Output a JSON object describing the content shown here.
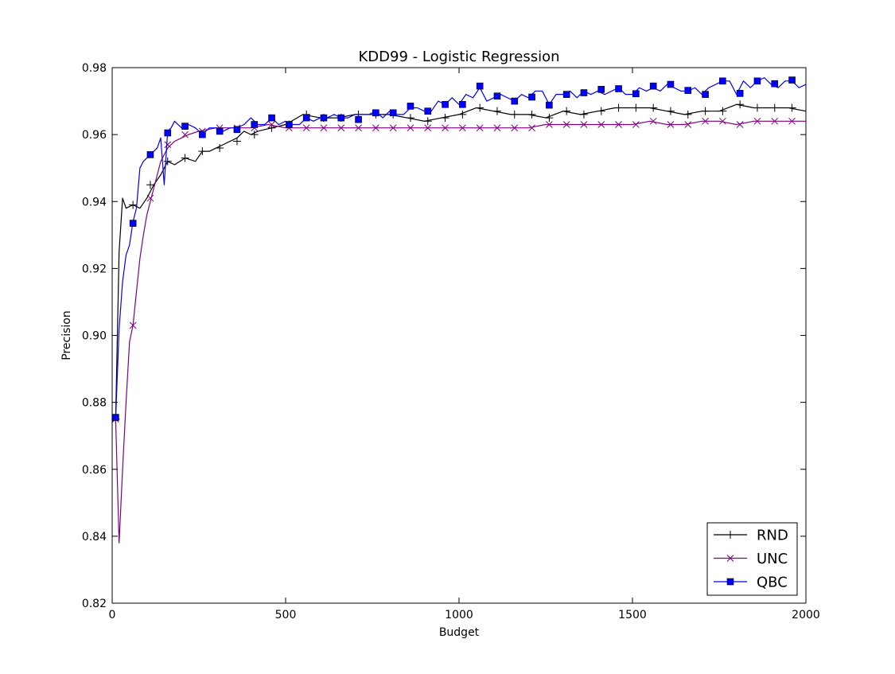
{
  "chart_data": {
    "type": "line",
    "title": "KDD99 - Logistic Regression",
    "xlabel": "Budget",
    "ylabel": "Precision",
    "xlim": [
      0,
      2000
    ],
    "ylim": [
      0.82,
      0.98
    ],
    "xticks": [
      0,
      500,
      1000,
      1500,
      2000
    ],
    "yticks": [
      0.82,
      0.84,
      0.86,
      0.88,
      0.9,
      0.92,
      0.94,
      0.96,
      0.98
    ],
    "xtick_labels": [
      "0",
      "500",
      "1000",
      "1500",
      "2000"
    ],
    "ytick_labels": [
      "0.82",
      "0.84",
      "0.86",
      "0.88",
      "0.90",
      "0.92",
      "0.94",
      "0.96",
      "0.98"
    ],
    "grid": false,
    "legend_position": "lower-right",
    "series": [
      {
        "name": "RND",
        "color": "#000000",
        "marker": "plus",
        "x": [
          10,
          20,
          30,
          40,
          60,
          80,
          100,
          120,
          140,
          160,
          180,
          210,
          240,
          260,
          280,
          300,
          320,
          360,
          380,
          400,
          420,
          460,
          500,
          550,
          600,
          650,
          700,
          750,
          800,
          850,
          900,
          950,
          1000,
          1050,
          1100,
          1150,
          1200,
          1250,
          1300,
          1350,
          1400,
          1450,
          1500,
          1550,
          1600,
          1650,
          1700,
          1750,
          1800,
          1850,
          1900,
          1950,
          2000
        ],
        "y": [
          0.875,
          0.925,
          0.941,
          0.938,
          0.939,
          0.938,
          0.941,
          0.945,
          0.948,
          0.952,
          0.951,
          0.953,
          0.952,
          0.955,
          0.955,
          0.956,
          0.957,
          0.959,
          0.961,
          0.96,
          0.961,
          0.962,
          0.963,
          0.966,
          0.965,
          0.965,
          0.966,
          0.966,
          0.966,
          0.965,
          0.964,
          0.965,
          0.966,
          0.968,
          0.967,
          0.966,
          0.966,
          0.965,
          0.967,
          0.966,
          0.967,
          0.968,
          0.968,
          0.968,
          0.967,
          0.966,
          0.967,
          0.967,
          0.969,
          0.968,
          0.968,
          0.968,
          0.967
        ],
        "marker_x": [
          10,
          60,
          110,
          160,
          210,
          260,
          310,
          360,
          410,
          460,
          510,
          560,
          610,
          660,
          710,
          760,
          810,
          860,
          910,
          960,
          1010,
          1060,
          1110,
          1160,
          1210,
          1260,
          1310,
          1360,
          1410,
          1460,
          1510,
          1560,
          1610,
          1660,
          1710,
          1760,
          1810,
          1860,
          1910,
          1960
        ],
        "marker_y": [
          0.875,
          0.939,
          0.945,
          0.952,
          0.953,
          0.955,
          0.956,
          0.958,
          0.96,
          0.962,
          0.963,
          0.966,
          0.965,
          0.965,
          0.966,
          0.966,
          0.966,
          0.965,
          0.964,
          0.965,
          0.966,
          0.968,
          0.967,
          0.966,
          0.966,
          0.965,
          0.967,
          0.966,
          0.967,
          0.968,
          0.968,
          0.968,
          0.967,
          0.966,
          0.967,
          0.967,
          0.969,
          0.968,
          0.968,
          0.968
        ]
      },
      {
        "name": "UNC",
        "color": "#800080",
        "marker": "x",
        "x": [
          10,
          20,
          30,
          40,
          50,
          60,
          70,
          80,
          90,
          100,
          110,
          120,
          130,
          140,
          160,
          180,
          200,
          220,
          250,
          300,
          350,
          400,
          450,
          500,
          550,
          600,
          650,
          700,
          750,
          800,
          850,
          900,
          950,
          1000,
          1050,
          1100,
          1150,
          1200,
          1250,
          1300,
          1350,
          1400,
          1450,
          1500,
          1550,
          1600,
          1650,
          1700,
          1750,
          1800,
          1850,
          1900,
          1950,
          2000
        ],
        "y": [
          0.875,
          0.838,
          0.86,
          0.88,
          0.898,
          0.903,
          0.913,
          0.923,
          0.93,
          0.936,
          0.94,
          0.944,
          0.948,
          0.952,
          0.956,
          0.958,
          0.959,
          0.96,
          0.961,
          0.962,
          0.962,
          0.962,
          0.963,
          0.962,
          0.962,
          0.962,
          0.962,
          0.962,
          0.962,
          0.962,
          0.962,
          0.962,
          0.962,
          0.962,
          0.962,
          0.962,
          0.962,
          0.962,
          0.963,
          0.963,
          0.963,
          0.963,
          0.963,
          0.963,
          0.964,
          0.963,
          0.963,
          0.964,
          0.964,
          0.963,
          0.964,
          0.964,
          0.964,
          0.964
        ],
        "marker_x": [
          10,
          60,
          110,
          160,
          210,
          260,
          310,
          360,
          410,
          460,
          510,
          560,
          610,
          660,
          710,
          760,
          810,
          860,
          910,
          960,
          1010,
          1060,
          1110,
          1160,
          1210,
          1260,
          1310,
          1360,
          1410,
          1460,
          1510,
          1560,
          1610,
          1660,
          1710,
          1760,
          1810,
          1860,
          1910,
          1960
        ],
        "marker_y": [
          0.875,
          0.903,
          0.941,
          0.957,
          0.96,
          0.961,
          0.962,
          0.962,
          0.962,
          0.963,
          0.962,
          0.962,
          0.962,
          0.962,
          0.962,
          0.962,
          0.962,
          0.962,
          0.962,
          0.962,
          0.962,
          0.962,
          0.962,
          0.962,
          0.962,
          0.963,
          0.963,
          0.963,
          0.963,
          0.963,
          0.963,
          0.964,
          0.963,
          0.963,
          0.964,
          0.964,
          0.963,
          0.964,
          0.964,
          0.964
        ]
      },
      {
        "name": "QBC",
        "color": "#0000ff",
        "marker": "square",
        "x": [
          10,
          20,
          30,
          40,
          50,
          60,
          70,
          80,
          90,
          100,
          110,
          120,
          130,
          140,
          150,
          160,
          170,
          180,
          190,
          200,
          210,
          220,
          240,
          260,
          280,
          300,
          320,
          340,
          360,
          380,
          400,
          420,
          440,
          460,
          480,
          500,
          520,
          540,
          560,
          580,
          600,
          620,
          640,
          660,
          680,
          700,
          720,
          740,
          760,
          780,
          800,
          820,
          840,
          860,
          880,
          900,
          920,
          940,
          960,
          980,
          1000,
          1020,
          1040,
          1060,
          1080,
          1100,
          1120,
          1140,
          1160,
          1180,
          1200,
          1220,
          1240,
          1260,
          1280,
          1300,
          1320,
          1340,
          1360,
          1380,
          1400,
          1420,
          1440,
          1460,
          1480,
          1500,
          1520,
          1540,
          1560,
          1580,
          1600,
          1620,
          1640,
          1660,
          1680,
          1700,
          1720,
          1740,
          1760,
          1780,
          1800,
          1820,
          1840,
          1860,
          1880,
          1900,
          1920,
          1940,
          1960,
          1980,
          2000
        ],
        "y": [
          0.875,
          0.902,
          0.916,
          0.924,
          0.927,
          0.934,
          0.938,
          0.95,
          0.952,
          0.953,
          0.954,
          0.955,
          0.956,
          0.959,
          0.945,
          0.961,
          0.962,
          0.964,
          0.963,
          0.962,
          0.962,
          0.963,
          0.962,
          0.96,
          0.962,
          0.962,
          0.961,
          0.962,
          0.962,
          0.963,
          0.965,
          0.963,
          0.963,
          0.965,
          0.963,
          0.964,
          0.963,
          0.963,
          0.965,
          0.964,
          0.965,
          0.965,
          0.966,
          0.965,
          0.965,
          0.966,
          0.966,
          0.966,
          0.967,
          0.965,
          0.967,
          0.966,
          0.966,
          0.968,
          0.968,
          0.967,
          0.967,
          0.97,
          0.969,
          0.971,
          0.969,
          0.972,
          0.971,
          0.974,
          0.97,
          0.971,
          0.972,
          0.971,
          0.97,
          0.972,
          0.971,
          0.973,
          0.973,
          0.969,
          0.972,
          0.972,
          0.973,
          0.971,
          0.973,
          0.972,
          0.973,
          0.972,
          0.973,
          0.974,
          0.972,
          0.972,
          0.974,
          0.973,
          0.974,
          0.973,
          0.975,
          0.974,
          0.973,
          0.973,
          0.974,
          0.972,
          0.974,
          0.975,
          0.976,
          0.976,
          0.972,
          0.976,
          0.974,
          0.976,
          0.977,
          0.975,
          0.974,
          0.976,
          0.976,
          0.974,
          0.975
        ],
        "marker_x": [
          10,
          60,
          110,
          160,
          210,
          260,
          310,
          360,
          410,
          460,
          510,
          560,
          610,
          660,
          710,
          760,
          810,
          860,
          910,
          960,
          1010,
          1060,
          1110,
          1160,
          1210,
          1260,
          1310,
          1360,
          1410,
          1460,
          1510,
          1560,
          1610,
          1660,
          1710,
          1760,
          1810,
          1860,
          1910,
          1960
        ],
        "marker_y": [
          0.8755,
          0.9335,
          0.954,
          0.9605,
          0.9625,
          0.96,
          0.961,
          0.9615,
          0.963,
          0.965,
          0.963,
          0.965,
          0.965,
          0.965,
          0.9645,
          0.9665,
          0.9665,
          0.9685,
          0.967,
          0.969,
          0.969,
          0.9745,
          0.9715,
          0.97,
          0.9712,
          0.9688,
          0.972,
          0.9725,
          0.9735,
          0.9737,
          0.9722,
          0.9745,
          0.975,
          0.9732,
          0.972,
          0.976,
          0.9723,
          0.976,
          0.9752,
          0.9763
        ]
      }
    ]
  }
}
